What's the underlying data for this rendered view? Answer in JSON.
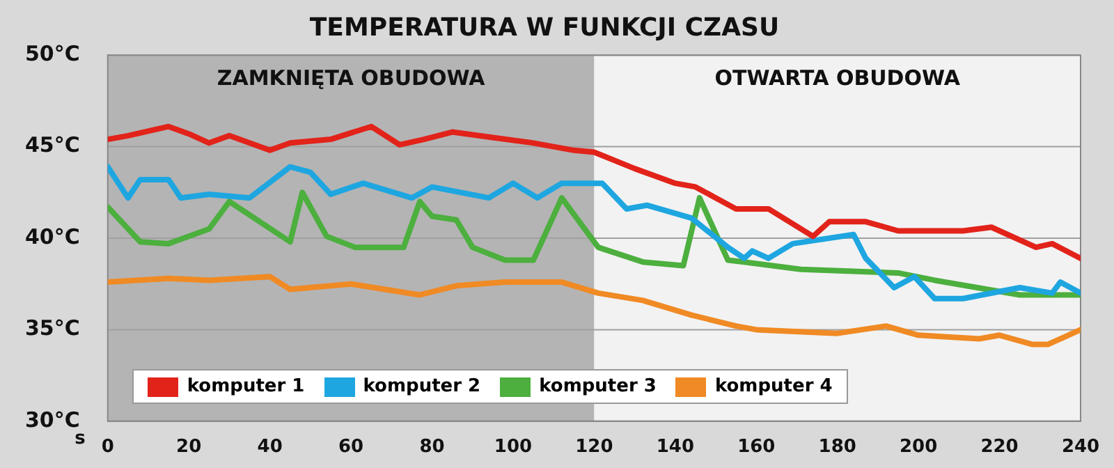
{
  "chart_data": {
    "type": "line",
    "title": "TEMPERATURA W FUNKCJI CZASU",
    "xlabel": "s",
    "xlim": [
      0,
      240
    ],
    "xticks": [
      0,
      20,
      40,
      60,
      80,
      100,
      120,
      140,
      160,
      180,
      200,
      220,
      240
    ],
    "ylim": [
      30,
      50
    ],
    "yticks": [
      {
        "value": 30,
        "label": "30°C"
      },
      {
        "value": 35,
        "label": "35°C"
      },
      {
        "value": 40,
        "label": "40°C"
      },
      {
        "value": 45,
        "label": "45°C"
      },
      {
        "value": 50,
        "label": "50°C"
      }
    ],
    "grid": "y",
    "legend": "bottom left",
    "marker": "none",
    "line_style": "solid",
    "bands": [
      {
        "axis": "x",
        "from": 0,
        "to": 120,
        "label": "ZAMKNIĘTA OBUDOWA",
        "color": "#b4b4b4"
      },
      {
        "axis": "x",
        "from": 120,
        "to": 240,
        "label": "OTWARTA OBUDOWA",
        "color": "#f2f2f2"
      }
    ],
    "series": [
      {
        "name": "komputer 1",
        "color": "#e2231a",
        "x": [
          0,
          5,
          15,
          20,
          25,
          30,
          40,
          45,
          55,
          65,
          72,
          78,
          85,
          95,
          105,
          115,
          120,
          130,
          140,
          145,
          150,
          155,
          163,
          174,
          178,
          187,
          195,
          211,
          218,
          229,
          233,
          240
        ],
        "values": [
          45.4,
          45.6,
          46.1,
          45.7,
          45.2,
          45.6,
          44.8,
          45.2,
          45.4,
          46.1,
          45.1,
          45.4,
          45.8,
          45.5,
          45.2,
          44.8,
          44.7,
          43.8,
          43.0,
          42.8,
          42.2,
          41.6,
          41.6,
          40.1,
          40.9,
          40.9,
          40.4,
          40.4,
          40.6,
          39.5,
          39.7,
          38.9
        ]
      },
      {
        "name": "komputer 2",
        "color": "#1ea6e0",
        "x": [
          0,
          5,
          8,
          15,
          18,
          25,
          35,
          45,
          50,
          55,
          63,
          75,
          80,
          94,
          100,
          106,
          112,
          122,
          128,
          133,
          144,
          153,
          157,
          159,
          163,
          169,
          184,
          187,
          194,
          199,
          204,
          211,
          225,
          233,
          235,
          240
        ],
        "values": [
          43.9,
          42.2,
          43.2,
          43.2,
          42.2,
          42.4,
          42.2,
          43.9,
          43.6,
          42.4,
          43.0,
          42.2,
          42.8,
          42.2,
          43.0,
          42.2,
          43.0,
          43.0,
          41.6,
          41.8,
          41.1,
          39.5,
          38.9,
          39.3,
          38.9,
          39.7,
          40.2,
          38.9,
          37.3,
          37.9,
          36.7,
          36.7,
          37.3,
          37.0,
          37.6,
          37.0
        ]
      },
      {
        "name": "komputer 3",
        "color": "#4caf3e",
        "x": [
          0,
          8,
          15,
          25,
          30,
          45,
          48,
          54,
          61,
          73,
          77,
          80,
          86,
          90,
          98,
          105,
          112,
          121,
          132,
          142,
          146,
          153,
          157,
          171,
          195,
          204,
          225,
          240
        ],
        "values": [
          41.7,
          39.8,
          39.7,
          40.5,
          42.0,
          39.8,
          42.5,
          40.1,
          39.5,
          39.5,
          42.0,
          41.2,
          41.0,
          39.5,
          38.8,
          38.8,
          42.2,
          39.5,
          38.7,
          38.5,
          42.2,
          38.8,
          38.7,
          38.3,
          38.1,
          37.7,
          36.9,
          36.9
        ]
      },
      {
        "name": "komputer 4",
        "color": "#f08a24",
        "x": [
          0,
          15,
          25,
          40,
          45,
          60,
          77,
          86,
          98,
          112,
          121,
          132,
          144,
          155,
          160,
          180,
          192,
          200,
          215,
          220,
          228,
          232,
          240
        ],
        "values": [
          37.6,
          37.8,
          37.7,
          37.9,
          37.2,
          37.5,
          36.9,
          37.4,
          37.6,
          37.6,
          37.0,
          36.6,
          35.8,
          35.2,
          35.0,
          34.8,
          35.2,
          34.7,
          34.5,
          34.7,
          34.2,
          34.2,
          35.0
        ]
      }
    ]
  }
}
